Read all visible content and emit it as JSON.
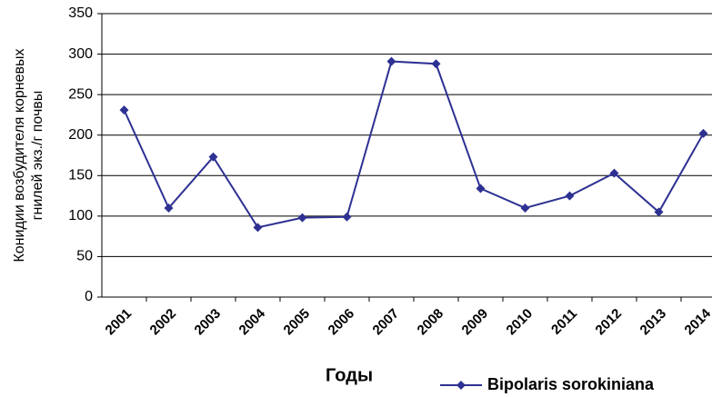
{
  "chart_data": {
    "type": "line",
    "y_label_lines": [
      "Конидии возбудителя корневых",
      "гнилей экз./г почвы"
    ],
    "x_label": "Годы",
    "categories": [
      "2001",
      "2002",
      "2003",
      "2004",
      "2005",
      "2006",
      "2007",
      "2008",
      "2009",
      "2010",
      "2011",
      "2012",
      "2013",
      "2014"
    ],
    "series": [
      {
        "name": "Bipolaris sorokiniana",
        "color": "#2e3192",
        "values": [
          231,
          110,
          173,
          86,
          98,
          99,
          291,
          288,
          134,
          110,
          125,
          153,
          105,
          202
        ]
      }
    ],
    "ylim": [
      0,
      350
    ],
    "yticks": [
      0,
      50,
      100,
      150,
      200,
      250,
      300,
      350
    ],
    "grid": true,
    "legend": "bottom-right"
  }
}
